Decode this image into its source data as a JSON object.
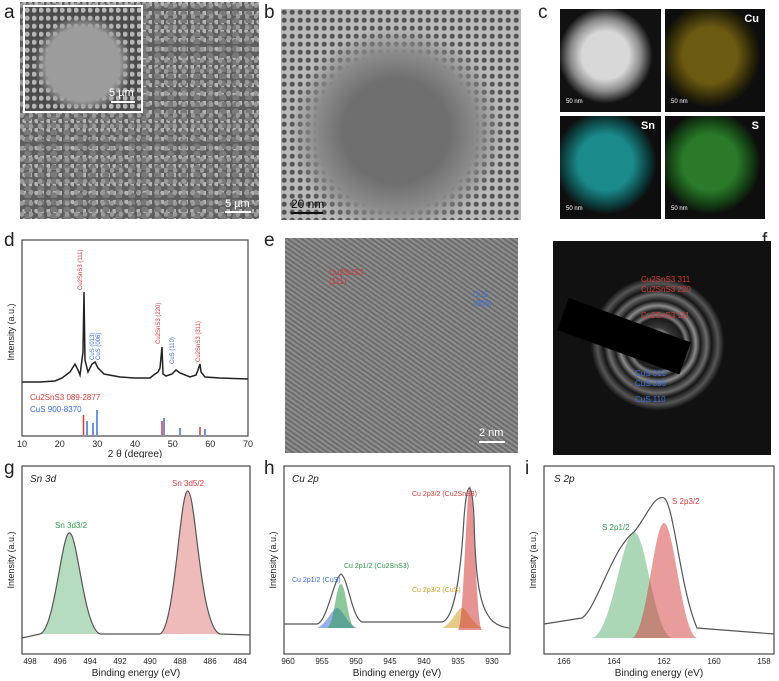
{
  "panels": {
    "a": {
      "label": "a",
      "scale_main": "5 µm",
      "scale_inset": "5 µm"
    },
    "b": {
      "label": "b",
      "scale": "20 nm"
    },
    "c": {
      "label": "c",
      "maps": [
        "",
        "Cu",
        "Sn",
        "S"
      ],
      "scale": "50 nm"
    },
    "d": {
      "label": "d",
      "ylabel": "Intensity (a.u.)",
      "xlabel": "2 θ (degree)",
      "xticks": [
        "10",
        "20",
        "30",
        "40",
        "50",
        "60",
        "70"
      ],
      "peak_labels": [
        "Cu2SnS3 (111)",
        "CuS (013)",
        "CuS (006)",
        "Cu2SnS3 (220)",
        "CuS (110)",
        "Cu2SnS3 (311)"
      ],
      "legend": [
        "Cu2SnS3 089-2877",
        "CuS 900-8370"
      ],
      "colors": {
        "cts": "#d23a3a",
        "cus": "#3a6fd8"
      }
    },
    "e": {
      "label": "e",
      "ann_cts": [
        "Cu2SnS3",
        "(111)"
      ],
      "ann_cus": [
        "CuS",
        "(006)"
      ],
      "scale": "2 nm"
    },
    "f": {
      "label": "f",
      "rings": [
        "Cu2SnS3 311",
        "Cu2SnS3 220",
        "Cu2SnS3 111",
        "CuS 013",
        "CuS 006",
        "CuS 110"
      ]
    },
    "g": {
      "label": "g",
      "title": "Sn 3d",
      "ylabel": "Intensity (a.u.)",
      "xlabel": "Binding energy (eV)",
      "xticks": [
        "498",
        "496",
        "494",
        "492",
        "490",
        "488",
        "486",
        "484"
      ],
      "peaks": [
        "Sn 3d3/2",
        "Sn 3d5/2"
      ]
    },
    "h": {
      "label": "h",
      "title": "Cu 2p",
      "ylabel": "Intensity (a.u.)",
      "xlabel": "Binding energy (eV)",
      "xticks": [
        "960",
        "955",
        "950",
        "945",
        "940",
        "935",
        "930"
      ],
      "peaks": [
        "Cu 2p1/2 (CuS)",
        "Cu 2p1/2 (Cu2SnS3)",
        "Cu 2p3/2 (Cu2SnS3)",
        "Cu 2p3/2 (CuS)"
      ]
    },
    "i": {
      "label": "i",
      "title": "S 2p",
      "ylabel": "Intensity (a.u.)",
      "xlabel": "Binding energy (eV)",
      "xticks": [
        "166",
        "164",
        "162",
        "160",
        "158"
      ],
      "peaks": [
        "S 2p1/2",
        "S 2p3/2"
      ]
    }
  }
}
